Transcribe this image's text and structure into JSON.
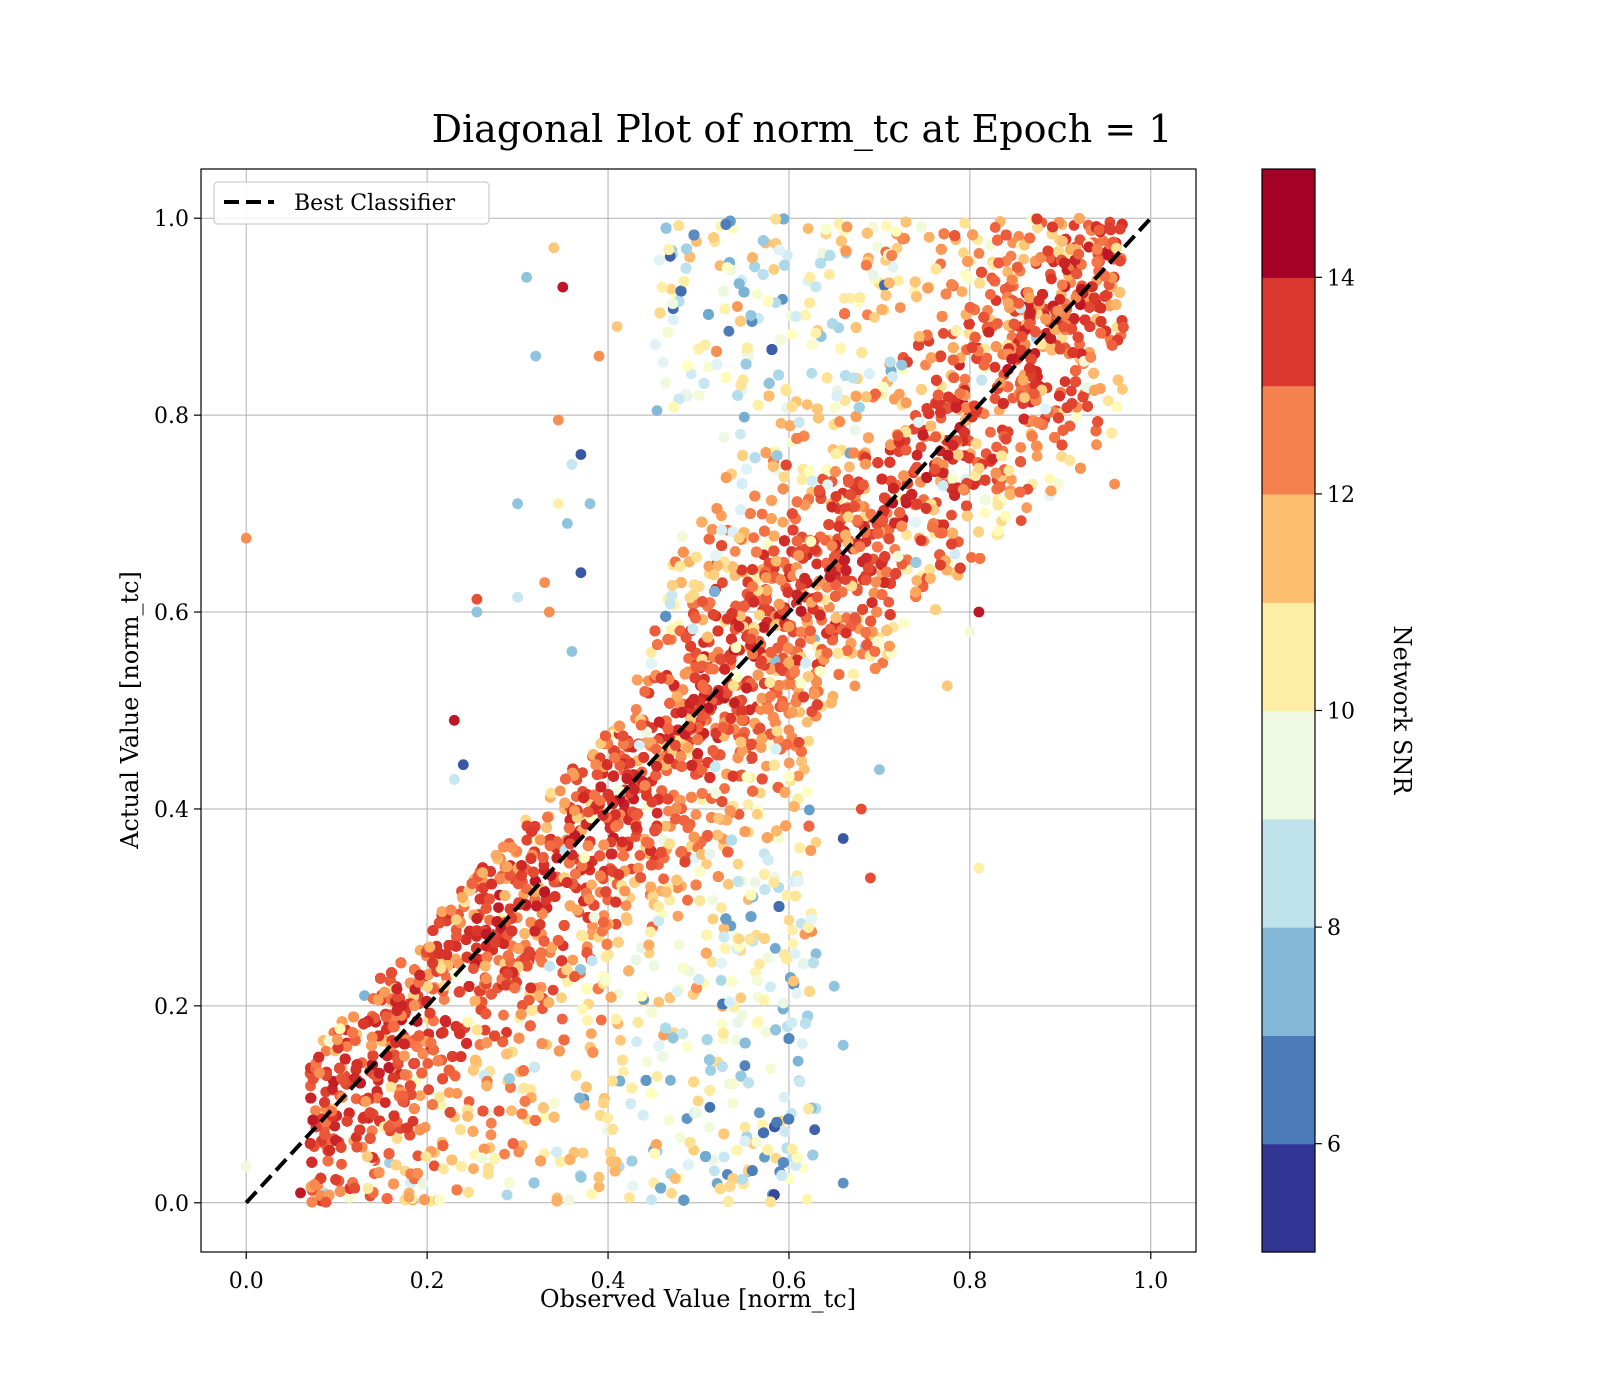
{
  "chart_data": {
    "type": "scatter",
    "title": "Diagonal Plot of norm_tc at Epoch = 1",
    "xlabel": "Observed Value [norm_tc]",
    "ylabel": "Actual Value [norm_tc]",
    "xlim": [
      -0.05,
      1.05
    ],
    "ylim": [
      -0.05,
      1.05
    ],
    "x_ticks": [
      "0.0",
      "0.2",
      "0.4",
      "0.6",
      "0.8",
      "1.0"
    ],
    "y_ticks": [
      "0.0",
      "0.2",
      "0.4",
      "0.6",
      "0.8",
      "1.0"
    ],
    "grid": true,
    "legend": {
      "placement": "top-left",
      "entries": [
        "Best Classifier"
      ]
    },
    "reference_line": {
      "name": "Best Classifier",
      "style": "dashed",
      "color": "#000000",
      "from": [
        0,
        0
      ],
      "to": [
        1,
        1
      ]
    },
    "colorbar": {
      "label": "Network SNR",
      "range": [
        5,
        15
      ],
      "ticks": [
        "6",
        "8",
        "10",
        "12",
        "14"
      ],
      "colors": [
        "#313695",
        "#4575b4",
        "#74add1",
        "#abd9e9",
        "#e0f3f8",
        "#ffffbf",
        "#fee090",
        "#fdae61",
        "#f46d43",
        "#d73027",
        "#a50026"
      ],
      "band_colors": [
        "#313695",
        "#4a7ab7",
        "#83b7d7",
        "#bfe2ed",
        "#eff8e3",
        "#feeda4",
        "#fdbe70",
        "#f4814e",
        "#da382f",
        "#a50026"
      ]
    },
    "series": [
      {
        "colored_by": "Network SNR",
        "points": [
          [
            0.0,
            0.675,
            12.5
          ],
          [
            0.0,
            0.037,
            9.5
          ],
          [
            0.81,
            0.34,
            10.5
          ],
          [
            0.69,
            0.33,
            13.5
          ],
          [
            0.23,
            0.49,
            14.5
          ],
          [
            0.24,
            0.445,
            5.5
          ],
          [
            0.23,
            0.43,
            8.5
          ],
          [
            0.255,
            0.613,
            13.5
          ],
          [
            0.255,
            0.6,
            7.5
          ],
          [
            0.3,
            0.71,
            7.5
          ],
          [
            0.31,
            0.94,
            7.5
          ],
          [
            0.32,
            0.86,
            7.5
          ],
          [
            0.35,
            0.93,
            14.5
          ],
          [
            0.34,
            0.97,
            11.5
          ],
          [
            0.37,
            0.76,
            5.5
          ],
          [
            0.37,
            0.64,
            5.5
          ],
          [
            0.36,
            0.75,
            8.5
          ],
          [
            0.355,
            0.69,
            7.5
          ],
          [
            0.345,
            0.71,
            10.5
          ],
          [
            0.66,
            0.16,
            7.5
          ],
          [
            0.65,
            0.22,
            7.5
          ],
          [
            0.7,
            0.44,
            7.5
          ],
          [
            0.68,
            0.4,
            13.5
          ],
          [
            0.06,
            0.01,
            14.5
          ],
          [
            0.775,
            0.525,
            11.5
          ],
          [
            0.96,
            0.73,
            12.5
          ],
          [
            0.94,
            0.77,
            12.5
          ],
          [
            0.81,
            0.6,
            14.5
          ],
          [
            0.8,
            0.58,
            9.5
          ],
          [
            0.66,
            0.02,
            6.5
          ],
          [
            0.66,
            0.37,
            5.5
          ],
          [
            0.3,
            0.615,
            8.5
          ],
          [
            0.33,
            0.63,
            12.5
          ],
          [
            0.38,
            0.71,
            7.5
          ],
          [
            0.39,
            0.86,
            12.5
          ],
          [
            0.41,
            0.89,
            11.5
          ],
          [
            0.36,
            0.56,
            7.5
          ],
          [
            0.345,
            0.795,
            12.5
          ],
          [
            0.335,
            0.6,
            12.5
          ]
        ]
      }
    ]
  }
}
